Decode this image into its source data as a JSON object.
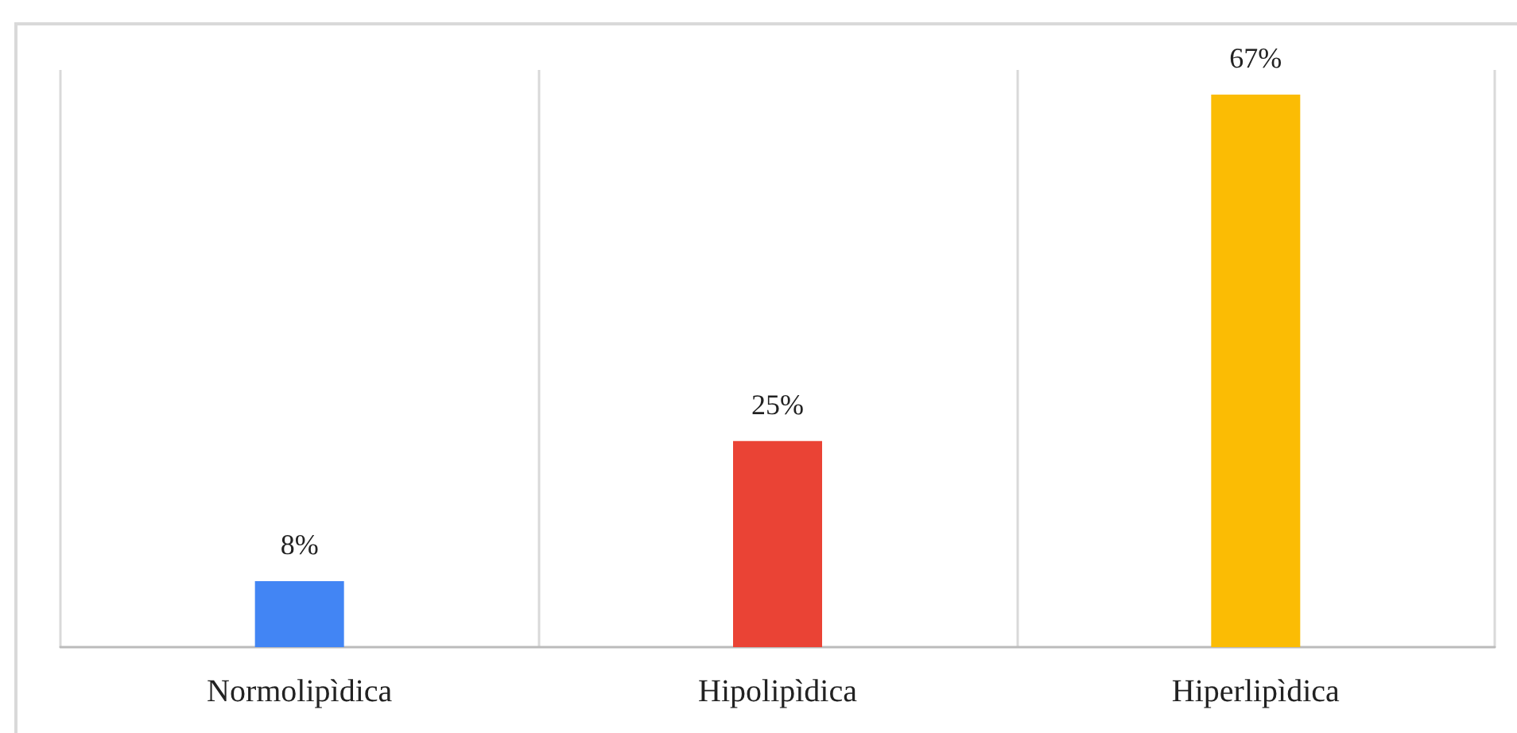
{
  "chart_data": {
    "type": "bar",
    "categories": [
      "Normolipìdica",
      "Hipolipìdica",
      "Hiperlipìdica"
    ],
    "values": [
      8,
      25,
      67
    ],
    "value_labels": [
      "8%",
      "25%",
      "67%"
    ],
    "colors": [
      "#4285f4",
      "#ea4335",
      "#fbbc04"
    ],
    "grid": "x"
  }
}
